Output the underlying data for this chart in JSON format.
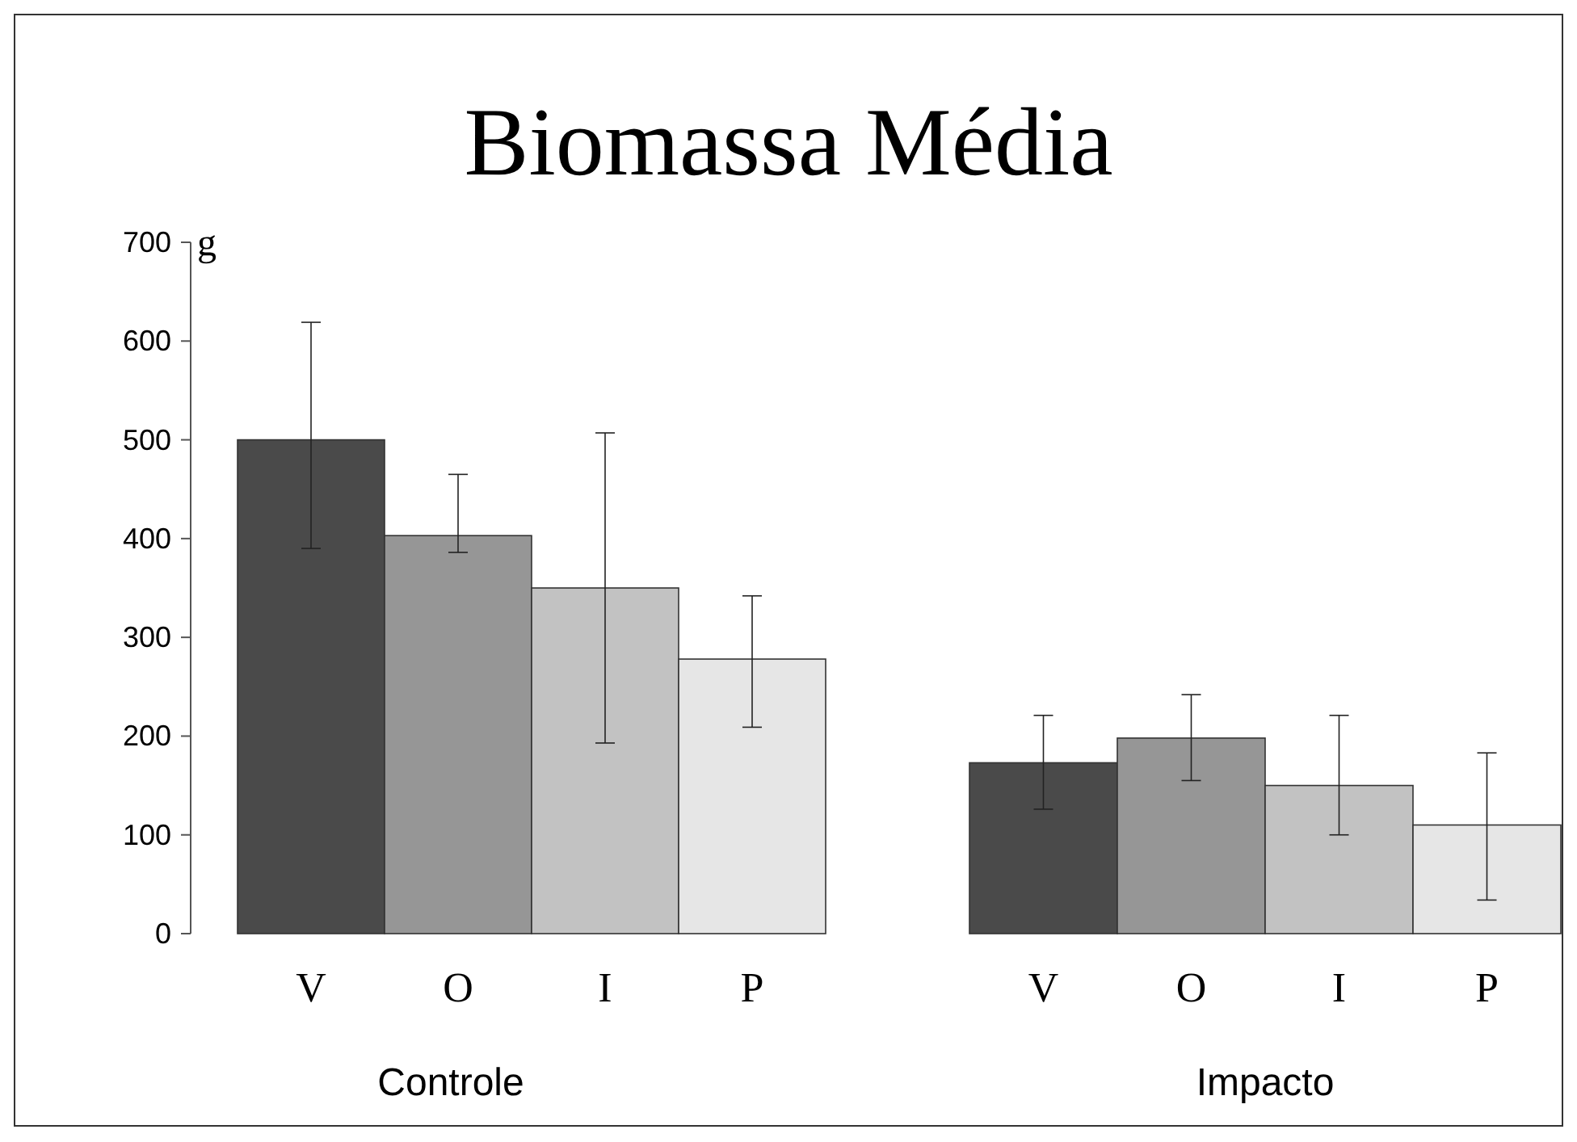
{
  "chart_data": [
    {
      "type": "bar",
      "title": "Biomassa Média",
      "ylabel": "g",
      "xlabel": "Controle",
      "categories": [
        "V",
        "O",
        "I",
        "P"
      ],
      "values": [
        500,
        403,
        350,
        278
      ],
      "colors": [
        "#4a4a4a",
        "#969696",
        "#c2c2c2",
        "#e6e6e6"
      ],
      "errors": [
        [
          390,
          619
        ],
        [
          386,
          465
        ],
        [
          193,
          507
        ],
        [
          209,
          342
        ]
      ],
      "ylim": [
        0,
        700
      ],
      "yticks": [
        0,
        100,
        200,
        300,
        400,
        500,
        600,
        700
      ],
      "grid": false
    },
    {
      "type": "bar",
      "xlabel": "Impacto",
      "categories": [
        "V",
        "O",
        "I",
        "P"
      ],
      "values": [
        173,
        198,
        150,
        110
      ],
      "colors": [
        "#4a4a4a",
        "#969696",
        "#c2c2c2",
        "#e6e6e6"
      ],
      "errors": [
        [
          126,
          221
        ],
        [
          155,
          242
        ],
        [
          100,
          221
        ],
        [
          34,
          183
        ]
      ],
      "ylim": [
        0,
        700
      ],
      "yticks": [
        0,
        100,
        200,
        300,
        400,
        500,
        600,
        700
      ],
      "tick_labels": "x",
      "grid": false
    }
  ]
}
